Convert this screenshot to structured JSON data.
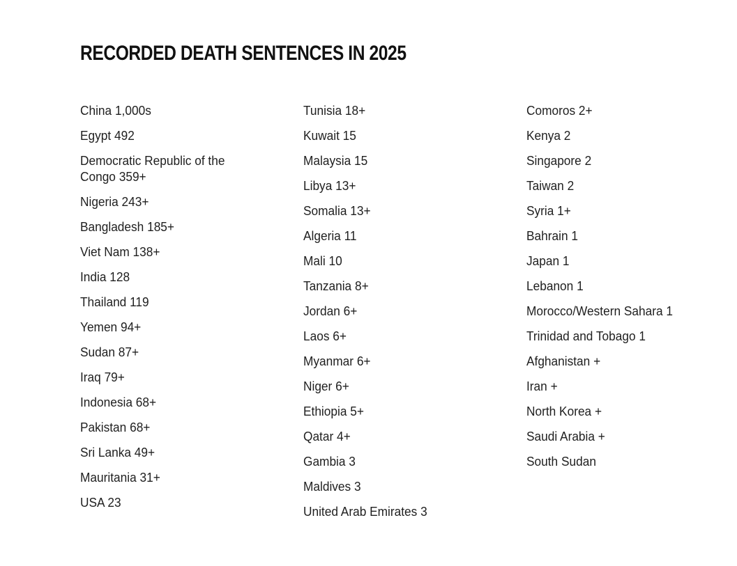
{
  "title": "RECORDED DEATH SENTENCES IN 2025",
  "columns": [
    [
      "China 1,000s",
      "Egypt 492",
      "Democratic Republic of the Congo 359+",
      "Nigeria 243+",
      "Bangladesh 185+",
      "Viet Nam 138+",
      "India 128",
      "Thailand 119",
      "Yemen 94+",
      "Sudan 87+",
      "Iraq 79+",
      "Indonesia 68+",
      "Pakistan 68+",
      "Sri Lanka 49+",
      "Mauritania 31+",
      "USA 23"
    ],
    [
      "Tunisia 18+",
      "Kuwait 15",
      "Malaysia 15",
      "Libya 13+",
      "Somalia 13+",
      "Algeria 11",
      "Mali 10",
      "Tanzania 8+",
      "Jordan 6+",
      "Laos 6+",
      "Myanmar 6+",
      "Niger 6+",
      "Ethiopia 5+",
      "Qatar 4+",
      "Gambia 3",
      "Maldives 3",
      "United Arab Emirates 3"
    ],
    [
      "Comoros 2+",
      "Kenya 2",
      "Singapore 2",
      "Taiwan 2",
      "Syria 1+",
      "Bahrain 1",
      "Japan 1",
      "Lebanon 1",
      "Morocco/Western Sahara 1",
      "Trinidad and Tobago 1",
      "Afghanistan +",
      "Iran +",
      "North Korea +",
      "Saudi Arabia +",
      "South Sudan"
    ]
  ]
}
